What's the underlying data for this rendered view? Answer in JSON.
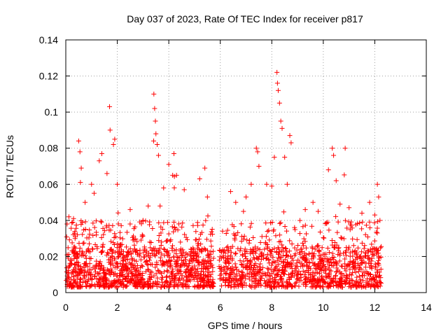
{
  "chart_data": {
    "type": "scatter",
    "title": "Day 037 of 2023, Rate Of TEC Index for receiver p817",
    "xlabel": "GPS time / hours",
    "ylabel": "ROTI / TECUs",
    "xlim": [
      0,
      14
    ],
    "ylim": [
      0,
      0.14
    ],
    "x_ticks": [
      "0",
      "2",
      "4",
      "6",
      "8",
      "10",
      "12",
      "14"
    ],
    "y_ticks": [
      "0",
      "0.02",
      "0.04",
      "0.06",
      "0.08",
      "0.1",
      "0.12",
      "0.14"
    ],
    "grid": true,
    "marker": "+",
    "color": "#ff0000",
    "data_extent_hours": [
      0,
      12.25
    ],
    "data_gap_hours": [
      5.75,
      5.95
    ],
    "series": [
      {
        "name": "p817",
        "peaks": [
          [
            0.05,
            0.038
          ],
          [
            0.12,
            0.042
          ],
          [
            0.3,
            0.041
          ],
          [
            0.5,
            0.084
          ],
          [
            0.55,
            0.078
          ],
          [
            0.6,
            0.069
          ],
          [
            0.75,
            0.05
          ],
          [
            1.0,
            0.06
          ],
          [
            1.1,
            0.055
          ],
          [
            1.3,
            0.073
          ],
          [
            1.4,
            0.077
          ],
          [
            1.6,
            0.066
          ],
          [
            1.7,
            0.103
          ],
          [
            1.72,
            0.09
          ],
          [
            1.85,
            0.082
          ],
          [
            1.9,
            0.085
          ],
          [
            2.0,
            0.06
          ],
          [
            2.5,
            0.046
          ],
          [
            3.0,
            0.04
          ],
          [
            3.2,
            0.048
          ],
          [
            3.42,
            0.11
          ],
          [
            3.45,
            0.102
          ],
          [
            3.48,
            0.095
          ],
          [
            3.5,
            0.088
          ],
          [
            3.55,
            0.082
          ],
          [
            3.6,
            0.076
          ],
          [
            3.8,
            0.058
          ],
          [
            4.0,
            0.071
          ],
          [
            4.15,
            0.065
          ],
          [
            4.2,
            0.077
          ],
          [
            4.3,
            0.065
          ],
          [
            4.6,
            0.057
          ],
          [
            5.2,
            0.063
          ],
          [
            5.4,
            0.069
          ],
          [
            5.5,
            0.053
          ],
          [
            6.4,
            0.056
          ],
          [
            6.6,
            0.05
          ],
          [
            6.9,
            0.045
          ],
          [
            7.0,
            0.053
          ],
          [
            7.2,
            0.06
          ],
          [
            7.4,
            0.08
          ],
          [
            7.45,
            0.078
          ],
          [
            7.5,
            0.07
          ],
          [
            7.8,
            0.06
          ],
          [
            8.0,
            0.059
          ],
          [
            8.1,
            0.075
          ],
          [
            8.2,
            0.122
          ],
          [
            8.22,
            0.116
          ],
          [
            8.25,
            0.112
          ],
          [
            8.3,
            0.105
          ],
          [
            8.35,
            0.095
          ],
          [
            8.4,
            0.091
          ],
          [
            8.5,
            0.075
          ],
          [
            8.6,
            0.06
          ],
          [
            8.7,
            0.087
          ],
          [
            8.75,
            0.083
          ],
          [
            9.3,
            0.046
          ],
          [
            9.6,
            0.05
          ],
          [
            9.8,
            0.045
          ],
          [
            10.2,
            0.068
          ],
          [
            10.35,
            0.08
          ],
          [
            10.4,
            0.076
          ],
          [
            10.5,
            0.062
          ],
          [
            10.65,
            0.049
          ],
          [
            10.85,
            0.08
          ],
          [
            11.0,
            0.047
          ],
          [
            11.5,
            0.044
          ],
          [
            11.8,
            0.05
          ],
          [
            12.0,
            0.043
          ],
          [
            12.1,
            0.06
          ],
          [
            12.15,
            0.053
          ],
          [
            12.2,
            0.04
          ]
        ]
      }
    ]
  }
}
